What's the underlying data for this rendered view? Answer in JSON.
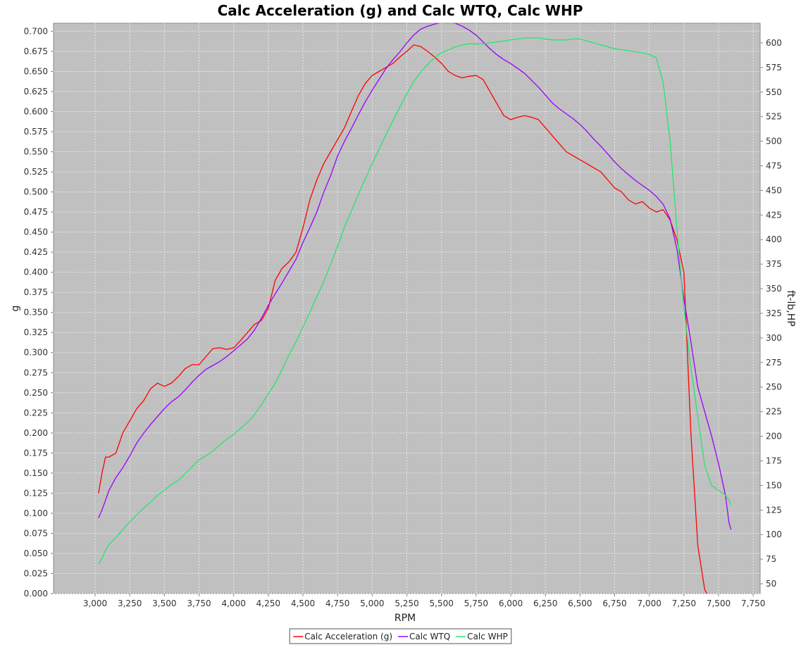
{
  "chart_data": {
    "type": "line",
    "title": "Calc Acceleration (g) and Calc WTQ, Calc WHP",
    "xlabel": "RPM",
    "ylabel_left": "g",
    "ylabel_right": "ft-lb,HP",
    "xlim": [
      2700,
      7800
    ],
    "ylim_left": [
      0,
      0.71
    ],
    "ylim_right": [
      40,
      620
    ],
    "x_ticks": [
      "3,000",
      "3,250",
      "3,500",
      "3,750",
      "4,000",
      "4,250",
      "4,500",
      "4,750",
      "5,000",
      "5,250",
      "5,500",
      "5,750",
      "6,000",
      "6,250",
      "6,500",
      "6,750",
      "7,000",
      "7,250",
      "7,500",
      "7,750"
    ],
    "y_left_ticks": [
      "0.000",
      "0.025",
      "0.050",
      "0.075",
      "0.100",
      "0.125",
      "0.150",
      "0.175",
      "0.200",
      "0.225",
      "0.250",
      "0.275",
      "0.300",
      "0.325",
      "0.350",
      "0.375",
      "0.400",
      "0.425",
      "0.450",
      "0.475",
      "0.500",
      "0.525",
      "0.550",
      "0.575",
      "0.600",
      "0.625",
      "0.650",
      "0.675",
      "0.700"
    ],
    "y_right_ticks": [
      "50",
      "75",
      "100",
      "125",
      "150",
      "175",
      "200",
      "225",
      "250",
      "275",
      "300",
      "325",
      "350",
      "375",
      "400",
      "425",
      "450",
      "475",
      "500",
      "525",
      "550",
      "575",
      "600"
    ],
    "grid": true,
    "plot_background": "#c0c0c0",
    "legend": {
      "placement": "bottom-center"
    },
    "series": [
      {
        "name": "Calc Acceleration (g)",
        "axis": "left",
        "color": "#ff0000",
        "x": [
          3025,
          3050,
          3075,
          3100,
          3150,
          3200,
          3250,
          3300,
          3350,
          3400,
          3450,
          3500,
          3550,
          3600,
          3650,
          3700,
          3750,
          3800,
          3850,
          3900,
          3950,
          4000,
          4050,
          4100,
          4150,
          4200,
          4250,
          4300,
          4350,
          4400,
          4450,
          4500,
          4550,
          4600,
          4650,
          4700,
          4750,
          4800,
          4850,
          4900,
          4950,
          5000,
          5050,
          5100,
          5150,
          5200,
          5250,
          5300,
          5350,
          5400,
          5450,
          5500,
          5550,
          5600,
          5650,
          5700,
          5750,
          5800,
          5850,
          5900,
          5950,
          6000,
          6050,
          6100,
          6150,
          6200,
          6250,
          6300,
          6350,
          6400,
          6450,
          6500,
          6550,
          6600,
          6650,
          6700,
          6750,
          6800,
          6850,
          6900,
          6950,
          7000,
          7050,
          7100,
          7150,
          7200,
          7250,
          7300,
          7350,
          7400,
          7450,
          7500,
          7550
        ],
        "values": [
          0.125,
          0.15,
          0.17,
          0.17,
          0.175,
          0.2,
          0.215,
          0.23,
          0.24,
          0.255,
          0.262,
          0.258,
          0.262,
          0.27,
          0.28,
          0.285,
          0.285,
          0.295,
          0.305,
          0.306,
          0.304,
          0.306,
          0.315,
          0.325,
          0.335,
          0.34,
          0.355,
          0.39,
          0.405,
          0.413,
          0.425,
          0.455,
          0.49,
          0.515,
          0.535,
          0.55,
          0.565,
          0.58,
          0.6,
          0.62,
          0.635,
          0.645,
          0.65,
          0.655,
          0.66,
          0.668,
          0.675,
          0.683,
          0.681,
          0.675,
          0.668,
          0.66,
          0.65,
          0.645,
          0.642,
          0.644,
          0.645,
          0.64,
          0.625,
          0.61,
          0.595,
          0.59,
          0.593,
          0.595,
          0.593,
          0.59,
          0.58,
          0.57,
          0.56,
          0.55,
          0.545,
          0.54,
          0.535,
          0.53,
          0.525,
          0.515,
          0.505,
          0.5,
          0.49,
          0.485,
          0.488,
          0.48,
          0.475,
          0.478,
          0.465,
          0.44,
          0.4,
          0.2,
          0.06,
          0.005,
          -0.01,
          -0.02,
          -0.03
        ]
      },
      {
        "name": "Calc WTQ",
        "axis": "right",
        "color": "#9b00ff",
        "x": [
          3025,
          3050,
          3075,
          3100,
          3150,
          3200,
          3250,
          3300,
          3350,
          3400,
          3450,
          3500,
          3550,
          3600,
          3650,
          3700,
          3750,
          3800,
          3850,
          3900,
          3950,
          4000,
          4050,
          4100,
          4150,
          4200,
          4250,
          4300,
          4350,
          4400,
          4450,
          4500,
          4550,
          4600,
          4650,
          4700,
          4750,
          4800,
          4850,
          4900,
          4950,
          5000,
          5050,
          5100,
          5150,
          5200,
          5250,
          5300,
          5350,
          5400,
          5450,
          5500,
          5550,
          5600,
          5650,
          5700,
          5750,
          5800,
          5850,
          5900,
          5950,
          6000,
          6050,
          6100,
          6150,
          6200,
          6250,
          6300,
          6350,
          6400,
          6450,
          6500,
          6550,
          6600,
          6650,
          6700,
          6750,
          6800,
          6850,
          6900,
          6950,
          7000,
          7050,
          7100,
          7150,
          7200,
          7250,
          7300,
          7350,
          7400,
          7450,
          7500,
          7550,
          7575,
          7590
        ],
        "values": [
          117,
          125,
          135,
          145,
          158,
          168,
          180,
          193,
          203,
          212,
          220,
          228,
          235,
          240,
          247,
          255,
          262,
          268,
          272,
          276,
          281,
          287,
          293,
          299,
          308,
          320,
          333,
          345,
          356,
          368,
          380,
          397,
          412,
          428,
          448,
          465,
          485,
          500,
          513,
          527,
          540,
          552,
          563,
          574,
          583,
          591,
          600,
          608,
          614,
          617,
          619,
          621,
          621,
          620,
          617,
          613,
          608,
          601,
          594,
          588,
          583,
          579,
          574,
          569,
          562,
          555,
          547,
          539,
          533,
          528,
          523,
          517,
          510,
          502,
          495,
          487,
          479,
          472,
          466,
          460,
          455,
          450,
          444,
          436,
          421,
          390,
          340,
          296,
          250,
          225,
          200,
          172,
          140,
          112,
          105
        ]
      },
      {
        "name": "Calc WHP",
        "axis": "right",
        "color": "#27e56b",
        "x": [
          3025,
          3050,
          3075,
          3100,
          3150,
          3200,
          3250,
          3300,
          3350,
          3400,
          3450,
          3500,
          3550,
          3600,
          3650,
          3700,
          3750,
          3800,
          3850,
          3900,
          3950,
          4000,
          4050,
          4100,
          4150,
          4200,
          4250,
          4300,
          4350,
          4400,
          4450,
          4500,
          4550,
          4600,
          4650,
          4700,
          4750,
          4800,
          4850,
          4900,
          4950,
          5000,
          5050,
          5100,
          5150,
          5200,
          5250,
          5300,
          5350,
          5400,
          5450,
          5500,
          5550,
          5600,
          5650,
          5700,
          5750,
          5800,
          5850,
          5900,
          5950,
          6000,
          6050,
          6100,
          6150,
          6200,
          6250,
          6300,
          6350,
          6400,
          6450,
          6500,
          6550,
          6600,
          6650,
          6700,
          6750,
          6800,
          6850,
          6900,
          6950,
          7000,
          7050,
          7100,
          7150,
          7200,
          7250,
          7300,
          7350,
          7400,
          7450,
          7500,
          7550,
          7575,
          7590
        ],
        "values": [
          70,
          76,
          84,
          90,
          97,
          105,
          113,
          120,
          127,
          133,
          140,
          145,
          151,
          155,
          162,
          169,
          176,
          180,
          185,
          191,
          197,
          202,
          208,
          214,
          222,
          232,
          243,
          254,
          268,
          283,
          296,
          311,
          326,
          342,
          357,
          375,
          393,
          413,
          429,
          446,
          462,
          477,
          492,
          507,
          521,
          535,
          548,
          561,
          570,
          578,
          585,
          590,
          593,
          596,
          598,
          599,
          599,
          599,
          600,
          601,
          602,
          603,
          604,
          605,
          605,
          605,
          604,
          603,
          603,
          603,
          604,
          604,
          602,
          600,
          598,
          596,
          594,
          593,
          592,
          591,
          590,
          588,
          585,
          560,
          500,
          410,
          330,
          270,
          220,
          170,
          150,
          145,
          140,
          135,
          130
        ]
      }
    ]
  }
}
